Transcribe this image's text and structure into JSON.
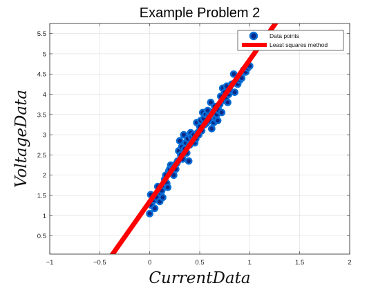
{
  "chart_data": {
    "type": "scatter",
    "title": "Example Problem 2",
    "xlabel": "CurrentData",
    "ylabel": "VoltageData",
    "xlim": [
      -1,
      2
    ],
    "ylim": [
      0.05,
      5.75
    ],
    "xticks": [
      -1,
      -0.5,
      0,
      0.5,
      1,
      1.5,
      2
    ],
    "xtick_labels": [
      "−1",
      "−0.5",
      "0",
      "0.5",
      "1",
      "1.5",
      "2"
    ],
    "yticks": [
      0.5,
      1,
      1.5,
      2,
      2.5,
      3,
      3.5,
      4,
      4.5,
      5,
      5.5
    ],
    "ytick_labels": [
      "0.5",
      "1",
      "1.5",
      "2",
      "2.5",
      "3",
      "3.5",
      "4",
      "4.5",
      "5",
      "5.5"
    ],
    "grid": true,
    "legend_position": "top-right",
    "series": [
      {
        "name": "Data points",
        "kind": "markers",
        "color": "#0a6fd6",
        "x": [
          0.0,
          0.01,
          0.02,
          0.04,
          0.05,
          0.06,
          0.07,
          0.08,
          0.09,
          0.1,
          0.11,
          0.12,
          0.13,
          0.14,
          0.15,
          0.16,
          0.17,
          0.18,
          0.19,
          0.2,
          0.21,
          0.22,
          0.23,
          0.24,
          0.25,
          0.26,
          0.27,
          0.28,
          0.29,
          0.3,
          0.31,
          0.32,
          0.33,
          0.34,
          0.35,
          0.36,
          0.37,
          0.38,
          0.39,
          0.4,
          0.41,
          0.42,
          0.43,
          0.44,
          0.45,
          0.46,
          0.47,
          0.48,
          0.49,
          0.5,
          0.51,
          0.52,
          0.53,
          0.54,
          0.55,
          0.56,
          0.57,
          0.58,
          0.59,
          0.6,
          0.61,
          0.62,
          0.63,
          0.64,
          0.65,
          0.66,
          0.67,
          0.68,
          0.69,
          0.7,
          0.71,
          0.72,
          0.73,
          0.74,
          0.75,
          0.76,
          0.77,
          0.78,
          0.79,
          0.8,
          0.82,
          0.84,
          0.85,
          0.86,
          0.88,
          0.9,
          0.92,
          0.94,
          0.96,
          0.98,
          1.0
        ],
        "y": [
          1.05,
          1.52,
          1.25,
          1.38,
          1.18,
          1.5,
          1.45,
          1.72,
          1.6,
          1.35,
          1.55,
          1.62,
          1.45,
          1.75,
          1.9,
          2.0,
          1.8,
          1.7,
          2.1,
          2.15,
          2.25,
          2.05,
          2.2,
          2.0,
          2.25,
          2.15,
          2.3,
          2.35,
          2.6,
          2.85,
          2.5,
          2.7,
          2.4,
          3.0,
          2.65,
          2.8,
          2.55,
          2.9,
          2.35,
          2.75,
          3.05,
          2.95,
          2.85,
          3.0,
          2.8,
          2.9,
          3.3,
          3.05,
          3.0,
          3.2,
          3.35,
          3.1,
          3.55,
          3.4,
          3.25,
          3.5,
          3.3,
          3.6,
          3.45,
          3.35,
          3.8,
          3.15,
          3.55,
          3.3,
          3.7,
          3.4,
          3.5,
          3.35,
          3.6,
          3.75,
          3.95,
          3.55,
          4.15,
          3.85,
          4.05,
          3.9,
          4.2,
          3.8,
          4.0,
          4.1,
          4.25,
          4.5,
          4.05,
          4.3,
          4.25,
          4.35,
          4.4,
          4.6,
          4.55,
          4.65,
          4.7
        ]
      },
      {
        "name": "Least squares method",
        "kind": "line",
        "color": "#ff0000",
        "x": [
          -0.4,
          1.3
        ],
        "y": [
          -0.05,
          5.9
        ]
      }
    ]
  },
  "colors": {
    "marker_edge": "#0a6fd6",
    "marker_face": "#0b2a8a",
    "fit_line": "#ff0000",
    "grid": "#dcdcdc",
    "axes": "#222222"
  }
}
